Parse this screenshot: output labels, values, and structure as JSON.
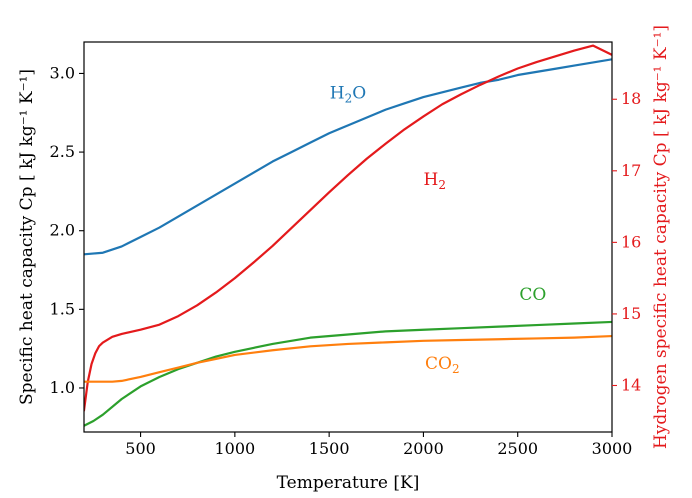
{
  "chart_data": {
    "type": "line",
    "xlabel": "Temperature [K]",
    "ylabel_left": "Specific heat capacity Cp [ kJ kg⁻¹ K⁻¹]",
    "ylabel_right": "Hydrogen specific heat capacity Cp [ kJ kg⁻¹ K⁻¹]",
    "xlim": [
      200,
      3000
    ],
    "ylim_left": [
      0.72,
      3.2
    ],
    "ylim_right": [
      13.35,
      18.8
    ],
    "x_ticks": [
      500,
      1000,
      1500,
      2000,
      2500,
      3000
    ],
    "x_tick_labels": [
      "500",
      "1000",
      "1500",
      "2000",
      "2500",
      "3000"
    ],
    "y_ticks_left": [
      1.0,
      1.5,
      2.0,
      2.5,
      3.0
    ],
    "y_tick_labels_left": [
      "1.0",
      "1.5",
      "2.0",
      "2.5",
      "3.0"
    ],
    "y_ticks_right": [
      14,
      15,
      16,
      17,
      18
    ],
    "y_tick_labels_right": [
      "14",
      "15",
      "16",
      "17",
      "18"
    ],
    "grid": false,
    "legend": "none",
    "series": [
      {
        "name": "H2O",
        "label_main": "H",
        "label_sub": "2",
        "label_tail": "O",
        "axis": "left",
        "color": "#1f77b4",
        "label_pos": [
          1600,
          2.84
        ],
        "x": [
          200,
          300,
          400,
          500,
          600,
          700,
          800,
          900,
          1000,
          1100,
          1200,
          1300,
          1400,
          1500,
          1600,
          1700,
          1800,
          1900,
          2000,
          2100,
          2200,
          2300,
          2400,
          2500,
          2600,
          2700,
          2800,
          2900,
          3000
        ],
        "y": [
          1.85,
          1.86,
          1.9,
          1.96,
          2.02,
          2.09,
          2.16,
          2.23,
          2.3,
          2.37,
          2.44,
          2.5,
          2.56,
          2.62,
          2.67,
          2.72,
          2.77,
          2.81,
          2.85,
          2.88,
          2.91,
          2.94,
          2.96,
          2.99,
          3.01,
          3.03,
          3.05,
          3.07,
          3.09
        ]
      },
      {
        "name": "H2",
        "label_main": "H",
        "label_sub": "2",
        "label_tail": "",
        "axis": "right",
        "color": "#e41a1c",
        "label_pos": [
          2060,
          16.8
        ],
        "x": [
          200,
          220,
          240,
          260,
          280,
          300,
          350,
          400,
          500,
          600,
          700,
          800,
          900,
          1000,
          1100,
          1200,
          1300,
          1400,
          1500,
          1600,
          1700,
          1800,
          1900,
          2000,
          2100,
          2200,
          2300,
          2400,
          2500,
          2600,
          2700,
          2800,
          2900,
          3000
        ],
        "y": [
          13.65,
          14.05,
          14.3,
          14.45,
          14.55,
          14.6,
          14.68,
          14.72,
          14.78,
          14.85,
          14.97,
          15.12,
          15.3,
          15.5,
          15.72,
          15.95,
          16.2,
          16.45,
          16.7,
          16.94,
          17.17,
          17.38,
          17.58,
          17.76,
          17.93,
          18.07,
          18.2,
          18.32,
          18.43,
          18.52,
          18.6,
          18.68,
          18.75,
          18.62
        ]
      },
      {
        "name": "CO",
        "label_main": "CO",
        "label_sub": "",
        "label_tail": "",
        "axis": "left",
        "color": "#2ca02c",
        "label_pos": [
          2580,
          1.56
        ],
        "x": [
          200,
          250,
          300,
          400,
          500,
          600,
          700,
          800,
          900,
          1000,
          1200,
          1400,
          1600,
          1800,
          2000,
          2200,
          2400,
          2600,
          2800,
          3000
        ],
        "y": [
          0.76,
          0.79,
          0.83,
          0.93,
          1.01,
          1.07,
          1.12,
          1.16,
          1.2,
          1.23,
          1.28,
          1.32,
          1.34,
          1.36,
          1.37,
          1.38,
          1.39,
          1.4,
          1.41,
          1.42
        ]
      },
      {
        "name": "CO2",
        "label_main": "CO",
        "label_sub": "2",
        "label_tail": "",
        "axis": "left",
        "color": "#ff7f0e",
        "label_pos": [
          2100,
          1.12
        ],
        "x": [
          200,
          250,
          300,
          350,
          400,
          500,
          600,
          700,
          800,
          900,
          1000,
          1200,
          1400,
          1600,
          1800,
          2000,
          2200,
          2400,
          2600,
          2800,
          3000
        ],
        "y": [
          1.04,
          1.04,
          1.04,
          1.04,
          1.045,
          1.07,
          1.1,
          1.13,
          1.16,
          1.185,
          1.21,
          1.24,
          1.265,
          1.28,
          1.29,
          1.3,
          1.305,
          1.31,
          1.315,
          1.32,
          1.33
        ]
      }
    ]
  }
}
